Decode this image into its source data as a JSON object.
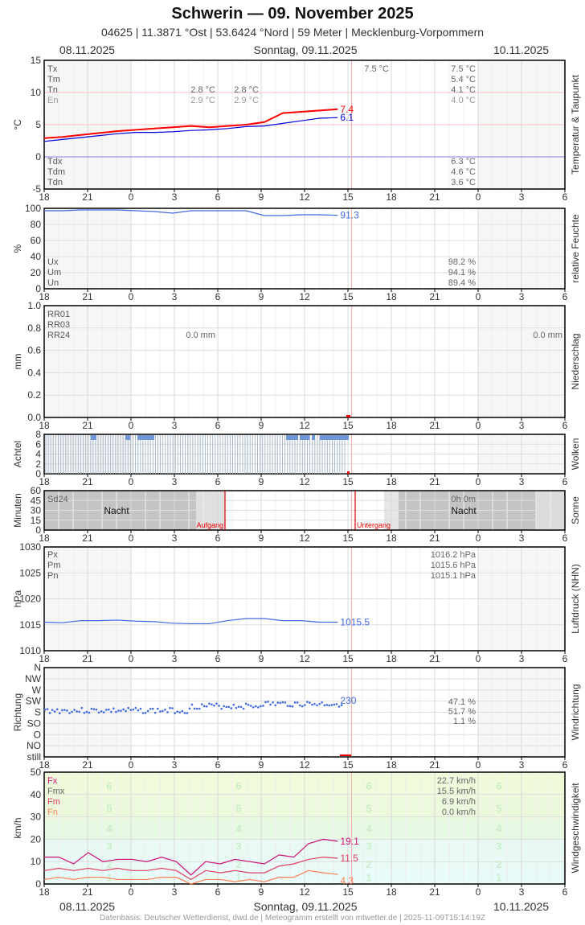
{
  "header": {
    "title": "Schwerin  —  09. November 2025",
    "subtitle": "04625  |  11.3871 °Ost  |  53.6424 °Nord  |  59 Meter  |  Mecklenburg-Vorpommern",
    "date_left": "08.11.2025",
    "date_center": "Sonntag, 09.11.2025",
    "date_right": "10.11.2025"
  },
  "footer": {
    "text": "Datenbasis: Deutscher Wetterdienst, dwd.de | Meteogramm erstellt von mtwetter.de | 2025-11-09T15:14:19Z",
    "date_left": "08.11.2025",
    "date_center": "Sonntag, 09.11.2025",
    "date_right": "10.11.2025"
  },
  "x_ticks": [
    "18",
    "21",
    "0",
    "3",
    "6",
    "9",
    "12",
    "15",
    "18",
    "21",
    "0",
    "3",
    "6"
  ],
  "colors": {
    "temperature": "#ff0000",
    "dewpoint": "#0000dd",
    "humidity": "#4169e1",
    "pressure": "#4169e1",
    "wind_dir": "#4169e1",
    "fx": "#cc1177",
    "fm": "#e04060",
    "fn": "#ff8050",
    "sunrise": "#dd0000"
  },
  "chart_data": [
    {
      "type": "line",
      "title": "Temperatur & Taupunkt",
      "ylabel": "°C",
      "ylim": [
        -5,
        15
      ],
      "yticks": [
        "15",
        "10",
        "5",
        "0",
        "-5"
      ],
      "series": [
        {
          "name": "Temperatur",
          "last_value": "7.4",
          "values": [
            2.9,
            3.1,
            3.4,
            3.7,
            4.0,
            4.2,
            4.4,
            4.6,
            4.8,
            4.6,
            4.8,
            5.0,
            5.4,
            6.8,
            7.0,
            7.2,
            7.4
          ]
        },
        {
          "name": "Taupunkt",
          "last_value": "6.1",
          "values": [
            2.4,
            2.7,
            3.0,
            3.3,
            3.6,
            3.8,
            3.8,
            3.9,
            4.1,
            4.2,
            4.4,
            4.7,
            4.8,
            5.2,
            5.6,
            6.0,
            6.1
          ]
        }
      ],
      "stats_labels": [
        "Tx",
        "Tm",
        "Tn",
        "En"
      ],
      "stats_day1": {
        "Tn": "2.8 °C",
        "En": "2.9 °C"
      },
      "stats_day1b": {
        "Tn": "2.8 °C",
        "En": "2.9 °C"
      },
      "stats_day2_tx_marker": "7.5 °C",
      "stats_day2": {
        "Tx": "7.5 °C",
        "Tm": "5.4 °C",
        "Tn": "4.1 °C",
        "En": "4.0 °C"
      },
      "dew_labels": [
        "Tdx",
        "Tdm",
        "Tdn"
      ],
      "dew_day2": {
        "Tdx": "6.3 °C",
        "Tdm": "4.6 °C",
        "Tdn": "3.6 °C"
      }
    },
    {
      "type": "line",
      "title": "relative Feuchte",
      "ylabel": "%",
      "ylim": [
        0,
        100
      ],
      "yticks": [
        "100",
        "80",
        "60",
        "40",
        "20",
        "0"
      ],
      "series": [
        {
          "name": "Feuchte",
          "last_value": "91.3",
          "values": [
            97,
            97,
            98,
            98,
            98,
            97,
            96,
            94,
            97,
            97,
            97,
            97,
            91,
            91,
            92,
            92,
            91.3
          ]
        }
      ],
      "stats_labels": [
        "Ux",
        "Um",
        "Un"
      ],
      "stats_day2": {
        "Ux": "98.2 %",
        "Um": "94.1 %",
        "Un": "89.4 %"
      }
    },
    {
      "type": "bar",
      "title": "Niederschlag",
      "ylabel": "mm",
      "ylim": [
        0,
        1.0
      ],
      "yticks": [
        "1.0",
        "0.8",
        "0.6",
        "0.4",
        "0.2",
        "0.0"
      ],
      "stats_labels": [
        "RR01",
        "RR03",
        "RR24"
      ],
      "rr24_day1": "0.0 mm",
      "rr24_day2": "0.0 mm"
    },
    {
      "type": "bar",
      "title": "Wolken",
      "ylabel": "Achtel",
      "ylim": [
        0,
        8
      ],
      "yticks": [
        "8",
        "6",
        "4",
        "2",
        "0"
      ]
    },
    {
      "type": "area",
      "title": "Sonne",
      "ylabel": "Minuten",
      "ylim": [
        0,
        60
      ],
      "yticks": [
        "60",
        "45",
        "30",
        "15",
        "0"
      ],
      "sd24_label": "Sd24",
      "sd24_value": "0h 0m",
      "night_label": "Nacht",
      "sunrise_label": "Aufgang",
      "sunset_label": "Untergang"
    },
    {
      "type": "line",
      "title": "Luftdruck (NHN)",
      "ylabel": "hPa",
      "ylim": [
        1010,
        1030
      ],
      "yticks": [
        "1030",
        "1025",
        "1020",
        "1015",
        "1010"
      ],
      "series": [
        {
          "name": "Luftdruck",
          "last_value": "1015.5",
          "values": [
            1015.5,
            1015.4,
            1015.8,
            1015.8,
            1015.9,
            1015.7,
            1015.6,
            1015.3,
            1015.2,
            1015.2,
            1015.8,
            1016.2,
            1016.2,
            1015.8,
            1015.8,
            1015.5,
            1015.5
          ]
        }
      ],
      "stats_labels": [
        "Px",
        "Pm",
        "Pn"
      ],
      "stats_day2": {
        "Px": "1016.2 hPa",
        "Pm": "1015.6 hPa",
        "Pn": "1015.1 hPa"
      }
    },
    {
      "type": "scatter",
      "title": "Windrichtung",
      "ylabel": "Richtung",
      "yticks": [
        "N",
        "NW",
        "W",
        "SW",
        "S",
        "SO",
        "O",
        "NO",
        "still"
      ],
      "last_value": "230",
      "stats_day2": [
        "47.1 %",
        "51.7 %",
        "1.1 %"
      ]
    },
    {
      "type": "line",
      "title": "Windgeschwindigkeit",
      "ylabel": "km/h",
      "ylim": [
        0,
        50
      ],
      "yticks": [
        "50",
        "40",
        "30",
        "20",
        "10",
        "0"
      ],
      "beaufort_labels": [
        "6",
        "5",
        "4",
        "3",
        "2",
        "1"
      ],
      "series": [
        {
          "name": "Fx",
          "last_value": "19.1",
          "values": [
            12,
            12,
            9,
            14,
            10,
            11,
            11,
            10,
            12,
            10,
            4,
            10,
            9,
            11,
            10,
            9,
            13,
            12,
            18,
            20,
            19.1
          ]
        },
        {
          "name": "Fm",
          "last_value": "11.5",
          "values": [
            6,
            7,
            6,
            7,
            6,
            7,
            6,
            6,
            7,
            6,
            2,
            6,
            5,
            6,
            5,
            5,
            8,
            9,
            11,
            12,
            11.5
          ]
        },
        {
          "name": "Fn",
          "last_value": "4.3",
          "values": [
            2,
            3,
            2,
            3,
            3,
            2,
            2,
            2,
            3,
            3,
            0,
            2,
            2,
            1,
            2,
            1,
            3,
            3,
            6,
            5,
            4.3
          ]
        }
      ],
      "stats_labels": [
        "Fx",
        "Fmx",
        "Fm",
        "Fn"
      ],
      "stats_day2": {
        "Fx": "22.7 km/h",
        "Fmx": "15.5 km/h",
        "Fm": "6.9 km/h",
        "Fn": "0.0 km/h"
      }
    }
  ]
}
